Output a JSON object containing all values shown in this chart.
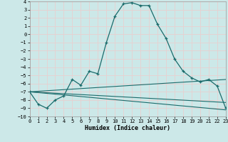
{
  "xlabel": "Humidex (Indice chaleur)",
  "bg_color": "#cce8e8",
  "grid_color": "#e8d0d0",
  "line_color": "#1a6b6b",
  "xlim": [
    0,
    23
  ],
  "ylim": [
    -10,
    4
  ],
  "x_ticks": [
    0,
    1,
    2,
    3,
    4,
    5,
    6,
    7,
    8,
    9,
    10,
    11,
    12,
    13,
    14,
    15,
    16,
    17,
    18,
    19,
    20,
    21,
    22,
    23
  ],
  "y_ticks": [
    4,
    3,
    2,
    1,
    0,
    -1,
    -2,
    -3,
    -4,
    -5,
    -6,
    -7,
    -8,
    -9,
    -10
  ],
  "curve1_x": [
    0,
    1,
    2,
    3,
    4,
    5,
    6,
    7,
    8,
    9,
    10,
    11,
    12,
    13,
    14,
    15,
    16,
    17,
    18,
    19,
    20,
    21,
    22,
    23
  ],
  "curve1_y": [
    -7.0,
    -8.5,
    -9.0,
    -8.0,
    -7.5,
    -5.5,
    -6.2,
    -4.5,
    -4.8,
    -1.0,
    2.2,
    3.7,
    3.85,
    3.5,
    3.5,
    1.2,
    -0.5,
    -3.0,
    -4.5,
    -5.3,
    -5.8,
    -5.5,
    -6.3,
    -9.0
  ],
  "line2_x": [
    0,
    23
  ],
  "line2_y": [
    -7.0,
    -9.2
  ],
  "line3_x": [
    0,
    23
  ],
  "line3_y": [
    -7.0,
    -8.3
  ],
  "line4_x": [
    0,
    23
  ],
  "line4_y": [
    -7.0,
    -5.5
  ]
}
